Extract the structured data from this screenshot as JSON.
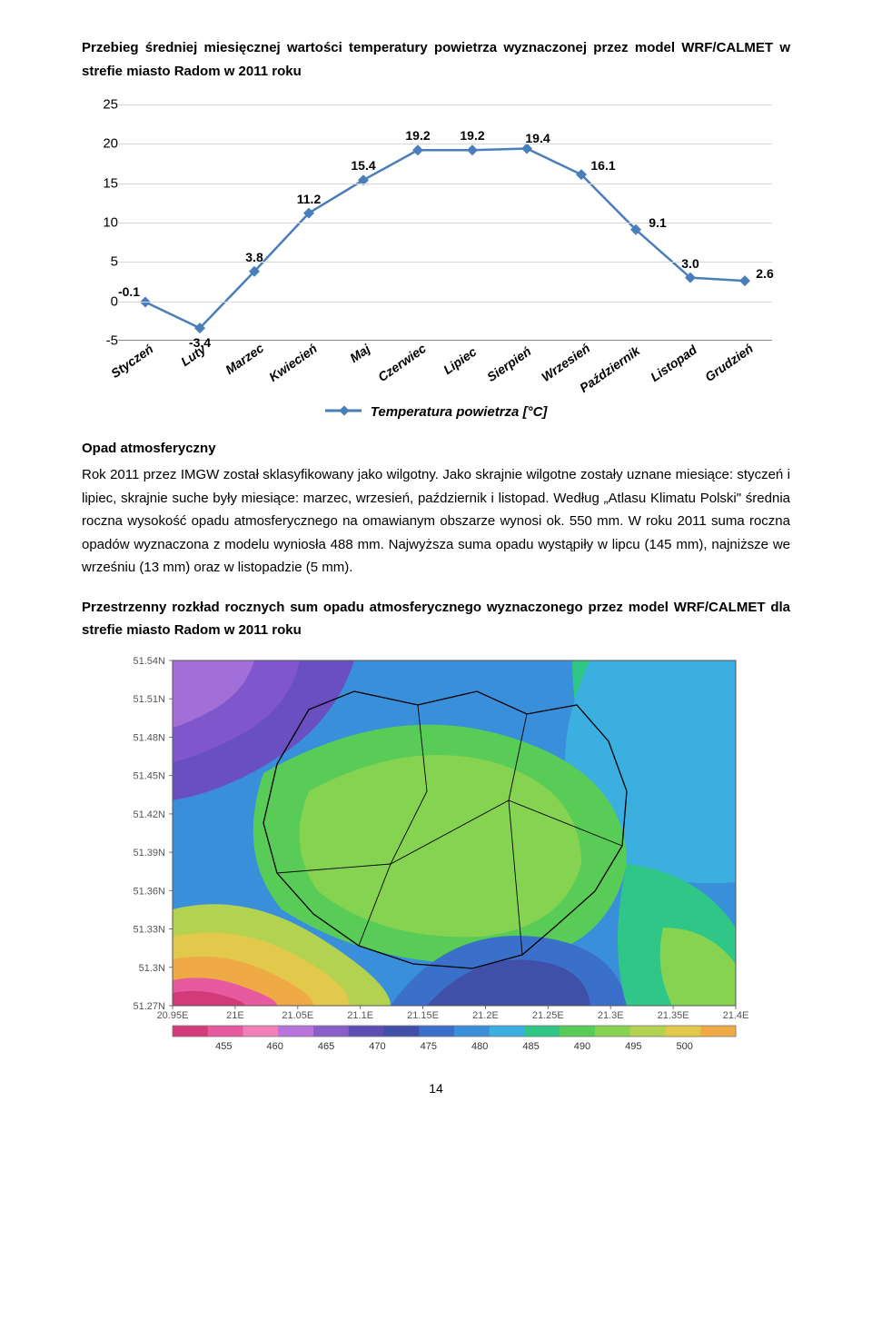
{
  "title_line1": "Przebieg średniej miesięcznej wartości temperatury powietrza wyznaczonej przez model WRF/CALMET w strefie miasto Radom w 2011 roku",
  "chart": {
    "type": "line",
    "categories": [
      "Styczeń",
      "Luty",
      "Marzec",
      "Kwiecień",
      "Maj",
      "Czerwiec",
      "Lipiec",
      "Sierpień",
      "Wrzesień",
      "Październik",
      "Listopad",
      "Grudzień"
    ],
    "values": [
      -0.1,
      -3.4,
      3.8,
      11.2,
      15.4,
      19.2,
      19.2,
      19.4,
      16.1,
      9.1,
      3.0,
      2.6
    ],
    "value_labels": [
      "-0.1",
      "-3.4",
      "3.8",
      "11.2",
      "15.4",
      "19.2",
      "19.2",
      "19.4",
      "16.1",
      "9.1",
      "3.0",
      "2.6"
    ],
    "line_color": "#4a7ebb",
    "marker_color": "#4a7ebb",
    "grid_color": "#d9d9d9",
    "ylim": [
      -5,
      25
    ],
    "ytick_step": 5,
    "ylabels": [
      "-5",
      "0",
      "5",
      "10",
      "15",
      "20",
      "25"
    ],
    "legend_label": "Temperatura powietrza [°C]",
    "label_fontsize": 14,
    "tick_fontsize": 15,
    "line_width": 2.5,
    "marker_size": 6,
    "label_color": "#000000"
  },
  "subhead": "Opad atmosferyczny",
  "paragraph": "Rok 2011 przez IMGW został sklasyfikowany jako wilgotny. Jako skrajnie wilgotne zostały uznane miesiące: styczeń i lipiec, skrajnie suche były miesiące: marzec, wrzesień, październik i listopad. Według „Atlasu Klimatu Polski\" średnia roczna wysokość opadu atmosferycznego na omawianym obszarze wynosi ok. 550 mm. W roku 2011 suma roczna opadów wyznaczona z modelu wyniosła 488 mm. Najwyższa suma opadu wystąpiły w lipcu (145 mm), najniższe we wrześniu (13 mm) oraz w listopadzie (5 mm).",
  "map_title": "Przestrzenny rozkład rocznych sum opadu atmosferycznego wyznaczonego przez model WRF/CALMET dla strefie miasto Radom w 2011 roku",
  "map": {
    "type": "heatmap",
    "lat_ticks": [
      "51.54N",
      "51.51N",
      "51.48N",
      "51.45N",
      "51.42N",
      "51.39N",
      "51.36N",
      "51.33N",
      "51.3N",
      "51.27N"
    ],
    "lon_ticks": [
      "20.95E",
      "21E",
      "21.05E",
      "21.1E",
      "21.15E",
      "21.2E",
      "21.25E",
      "21.3E",
      "21.35E",
      "21.4E"
    ],
    "colorbar_values": [
      "455",
      "460",
      "465",
      "470",
      "475",
      "480",
      "485",
      "490",
      "495",
      "500"
    ],
    "colorbar_colors": [
      "#d33a7a",
      "#e85aa0",
      "#f27fb8",
      "#b973dd",
      "#8a5ec9",
      "#5e4db3",
      "#4050a8",
      "#3a6fca",
      "#3a8fda",
      "#3aafe0",
      "#2fc688",
      "#58cc57",
      "#86d352",
      "#b3d24f",
      "#e2c94c",
      "#f0aa45"
    ],
    "tick_color": "#555555",
    "bg_color": "#ffffff"
  },
  "page_number": "14"
}
